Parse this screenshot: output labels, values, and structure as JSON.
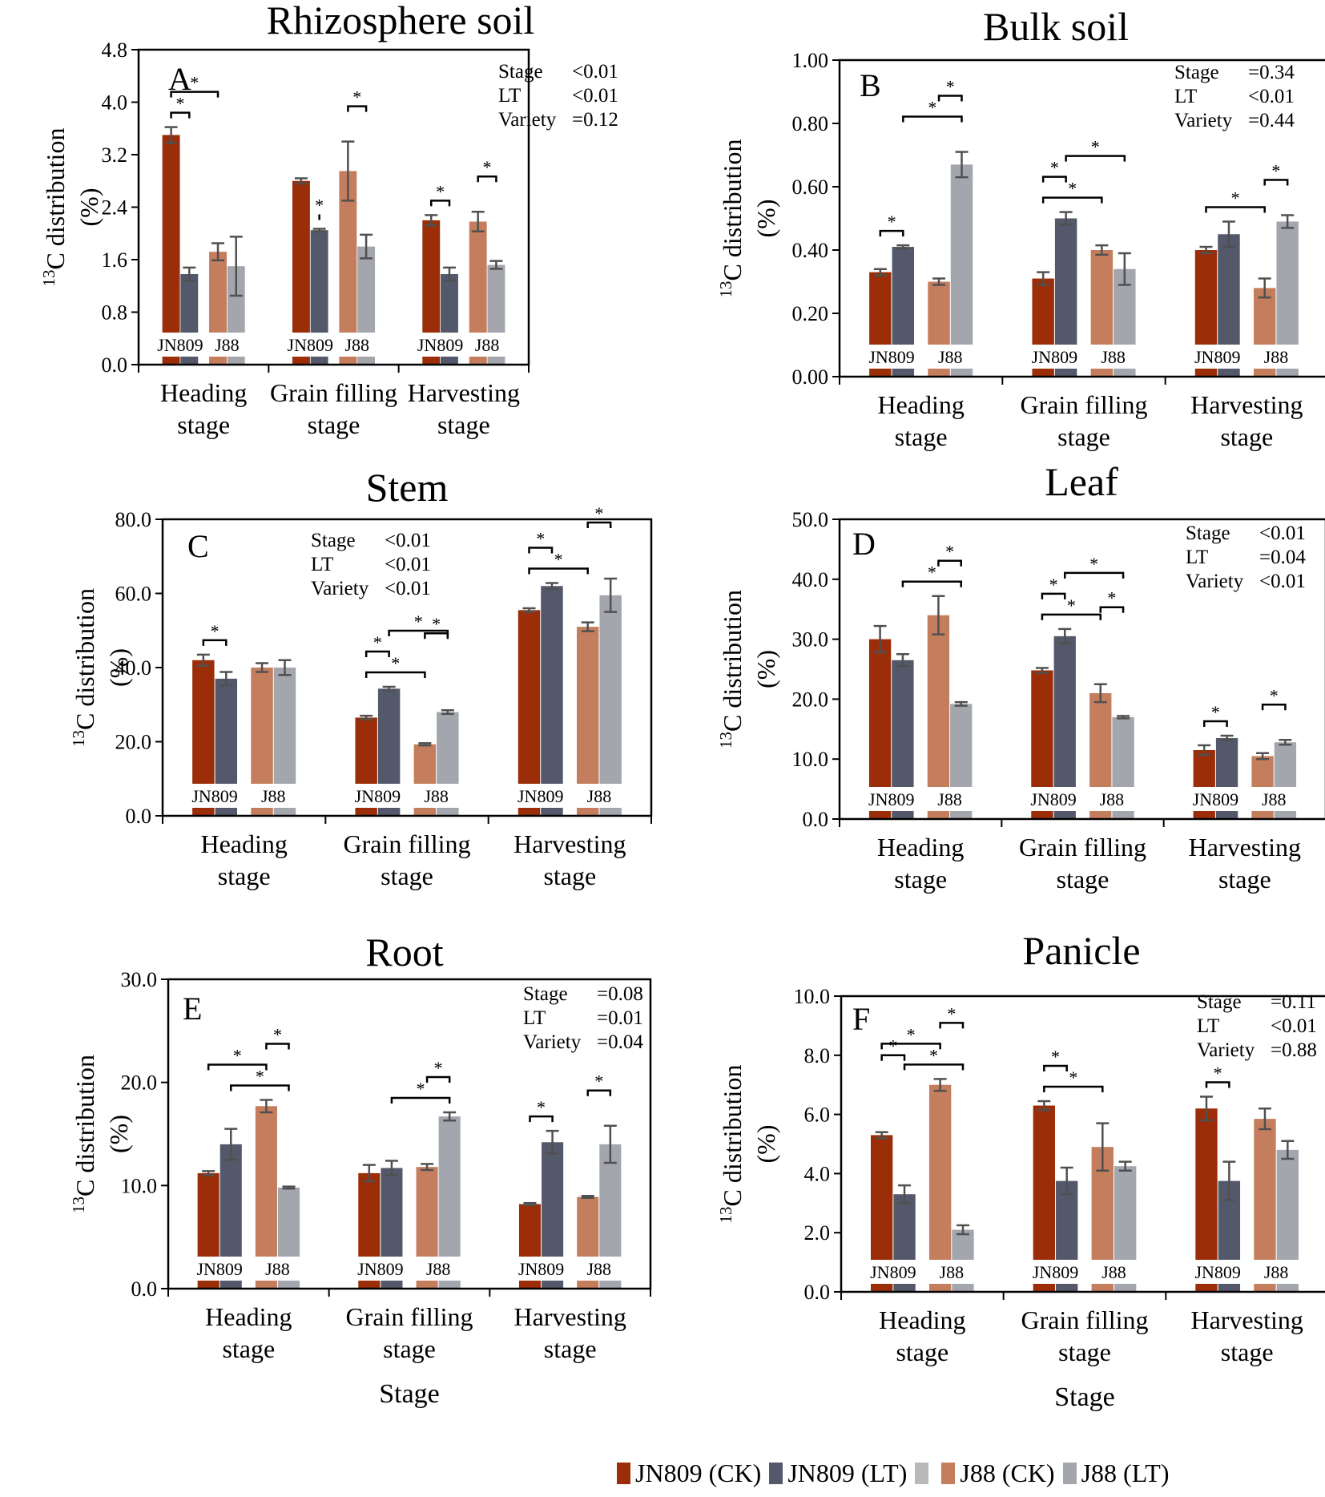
{
  "colors": {
    "jn809_ck": "#9b2e08",
    "jn809_lt": "#53586a",
    "j88_ck": "#c57e5d",
    "j88_lt": "#a4a6ad",
    "error_bar": "#505050",
    "legend_extra": "#b9b9b9"
  },
  "legend": {
    "items": [
      {
        "label": "JN809 (CK)",
        "color": "#9b2e08"
      },
      {
        "label": "JN809 (LT)",
        "color": "#53586a"
      },
      {
        "label": "",
        "color": "#b9b9b9"
      },
      {
        "label": "J88 (CK)",
        "color": "#c57e5d"
      },
      {
        "label": "J88 (LT)",
        "color": "#a4a6ad"
      }
    ]
  },
  "chart_data": [
    {
      "id": "rhizosphere",
      "type": "bar",
      "letter": "A",
      "title": "Rhizosphere soil",
      "ylabel_sup": "13",
      "ylabel_main": "C distribution",
      "ylabel_unit": "(%)",
      "xlabel": "",
      "ylim": [
        0,
        4.8
      ],
      "yticks": [
        "0.0",
        "0.8",
        "1.6",
        "2.4",
        "3.2",
        "4.0",
        "4.8"
      ],
      "categories": [
        [
          "Heading",
          "stage"
        ],
        [
          "Grain filling",
          "stage"
        ],
        [
          "Harvesting",
          "stage"
        ]
      ],
      "variety_labels": [
        "JN809",
        "J88"
      ],
      "series": [
        {
          "name": "JN809 (CK)",
          "values": [
            3.5,
            2.8,
            2.2
          ],
          "errors": [
            0.12,
            0.04,
            0.08
          ]
        },
        {
          "name": "JN809 (LT)",
          "values": [
            1.38,
            2.05,
            1.38
          ],
          "errors": [
            0.1,
            0.02,
            0.1
          ]
        },
        {
          "name": "J88 (CK)",
          "values": [
            1.72,
            2.95,
            2.18
          ],
          "errors": [
            0.13,
            0.45,
            0.15
          ]
        },
        {
          "name": "J88 (LT)",
          "values": [
            1.5,
            1.8,
            1.52
          ],
          "errors": [
            0.45,
            0.18,
            0.06
          ]
        }
      ],
      "stats": [
        [
          "Stage",
          "<0.01"
        ],
        [
          "LT",
          "<0.01"
        ],
        [
          "Variety",
          "=0.12"
        ]
      ],
      "significance": [
        [
          0,
          0,
          0,
          1
        ],
        [
          0,
          0,
          0,
          2
        ],
        [
          1,
          0,
          1,
          1
        ],
        [
          1,
          2,
          2,
          3
        ],
        [
          2,
          0,
          0,
          1
        ],
        [
          2,
          2,
          2,
          3
        ]
      ]
    },
    {
      "id": "bulk",
      "type": "bar",
      "letter": "B",
      "title": "Bulk soil",
      "ylabel_sup": "13",
      "ylabel_main": "C distribution",
      "ylabel_unit": "(%)",
      "xlabel": "",
      "ylim": [
        0,
        1.0
      ],
      "yticks": [
        "0.00",
        "0.20",
        "0.40",
        "0.60",
        "0.80",
        "1.00"
      ],
      "categories": [
        [
          "Heading",
          "stage"
        ],
        [
          "Grain filling",
          "stage"
        ],
        [
          "Harvesting",
          "stage"
        ]
      ],
      "variety_labels": [
        "JN809",
        "J88"
      ],
      "series": [
        {
          "name": "JN809 (CK)",
          "values": [
            0.33,
            0.31,
            0.4
          ],
          "errors": [
            0.01,
            0.02,
            0.01
          ]
        },
        {
          "name": "JN809 (LT)",
          "values": [
            0.41,
            0.5,
            0.45
          ],
          "errors": [
            0.005,
            0.02,
            0.04
          ]
        },
        {
          "name": "J88 (CK)",
          "values": [
            0.3,
            0.4,
            0.28
          ],
          "errors": [
            0.01,
            0.015,
            0.03
          ]
        },
        {
          "name": "J88 (LT)",
          "values": [
            0.67,
            0.34,
            0.49
          ],
          "errors": [
            0.04,
            0.05,
            0.02
          ]
        }
      ],
      "stats": [
        [
          "Stage",
          "=0.34"
        ],
        [
          "LT",
          "<0.01"
        ],
        [
          "Variety",
          "=0.44"
        ]
      ],
      "significance": [
        [
          0,
          0,
          0,
          1
        ],
        [
          0,
          1,
          1,
          3
        ],
        [
          0,
          2,
          2,
          3
        ],
        [
          1,
          0,
          0,
          2
        ],
        [
          1,
          0,
          0,
          1
        ],
        [
          1,
          1,
          1,
          3
        ],
        [
          2,
          0,
          0,
          2
        ],
        [
          2,
          2,
          2,
          3
        ]
      ]
    },
    {
      "id": "stem",
      "type": "bar",
      "letter": "C",
      "title": "Stem",
      "ylabel_sup": "13",
      "ylabel_main": "C distribution",
      "ylabel_unit": "(%)",
      "xlabel": "",
      "ylim": [
        0,
        80
      ],
      "yticks": [
        "0.0",
        "20.0",
        "40.0",
        "60.0",
        "80.0"
      ],
      "categories": [
        [
          "Heading",
          "stage"
        ],
        [
          "Grain filling",
          "stage"
        ],
        [
          "Harvesting",
          "stage"
        ]
      ],
      "variety_labels": [
        "JN809",
        "J88"
      ],
      "series": [
        {
          "name": "JN809 (CK)",
          "values": [
            42,
            26.5,
            55.5
          ],
          "errors": [
            1.5,
            0.5,
            0.5
          ]
        },
        {
          "name": "JN809 (LT)",
          "values": [
            37,
            34.3,
            62
          ],
          "errors": [
            1.8,
            0.5,
            0.8
          ]
        },
        {
          "name": "J88 (CK)",
          "values": [
            40,
            19.3,
            51
          ],
          "errors": [
            1.2,
            0.3,
            1.2
          ]
        },
        {
          "name": "J88 (LT)",
          "values": [
            40,
            28,
            59.5
          ],
          "errors": [
            2,
            0.5,
            4.5
          ]
        }
      ],
      "stats": [
        [
          "Stage",
          "<0.01"
        ],
        [
          "LT",
          "<0.01"
        ],
        [
          "Variety",
          "<0.01"
        ]
      ],
      "significance": [
        [
          0,
          0,
          0,
          1
        ],
        [
          1,
          0,
          0,
          2
        ],
        [
          1,
          0,
          0,
          1
        ],
        [
          1,
          1,
          1,
          3
        ],
        [
          1,
          2,
          2,
          3
        ],
        [
          2,
          0,
          0,
          2
        ],
        [
          2,
          0,
          0,
          1
        ],
        [
          2,
          2,
          2,
          3
        ]
      ]
    },
    {
      "id": "leaf",
      "type": "bar",
      "letter": "D",
      "title": "Leaf",
      "ylabel_sup": "13",
      "ylabel_main": "C distribution",
      "ylabel_unit": "(%)",
      "xlabel": "",
      "ylim": [
        0,
        50
      ],
      "yticks": [
        "0.0",
        "10.0",
        "20.0",
        "30.0",
        "40.0",
        "50.0"
      ],
      "categories": [
        [
          "Heading",
          "stage"
        ],
        [
          "Grain filling",
          "stage"
        ],
        [
          "Harvesting",
          "stage"
        ]
      ],
      "variety_labels": [
        "JN809",
        "J88"
      ],
      "series": [
        {
          "name": "JN809 (CK)",
          "values": [
            30,
            24.8,
            11.5
          ],
          "errors": [
            2.2,
            0.4,
            0.8
          ]
        },
        {
          "name": "JN809 (LT)",
          "values": [
            26.5,
            30.5,
            13.5
          ],
          "errors": [
            1,
            1.2,
            0.4
          ]
        },
        {
          "name": "J88 (CK)",
          "values": [
            34,
            21,
            10.5
          ],
          "errors": [
            3.2,
            1.5,
            0.5
          ]
        },
        {
          "name": "J88 (LT)",
          "values": [
            19.2,
            17,
            12.8
          ],
          "errors": [
            0.3,
            0.2,
            0.4
          ]
        }
      ],
      "stats": [
        [
          "Stage",
          "<0.01"
        ],
        [
          "LT",
          "=0.04"
        ],
        [
          "Variety",
          "<0.01"
        ]
      ],
      "significance": [
        [
          0,
          1,
          1,
          3
        ],
        [
          0,
          2,
          2,
          3
        ],
        [
          1,
          0,
          0,
          2
        ],
        [
          1,
          0,
          0,
          1
        ],
        [
          1,
          1,
          1,
          3
        ],
        [
          1,
          2,
          2,
          3
        ],
        [
          2,
          0,
          0,
          1
        ],
        [
          2,
          2,
          2,
          3
        ]
      ]
    },
    {
      "id": "root",
      "type": "bar",
      "letter": "E",
      "title": "Root",
      "ylabel_sup": "13",
      "ylabel_main": "C distribution",
      "ylabel_unit": "(%)",
      "xlabel": "Stage",
      "ylim": [
        0,
        30
      ],
      "yticks": [
        "0.0",
        "10.0",
        "20.0",
        "30.0"
      ],
      "categories": [
        [
          "Heading",
          "stage"
        ],
        [
          "Grain filling",
          "stage"
        ],
        [
          "Harvesting",
          "stage"
        ]
      ],
      "variety_labels": [
        "JN809",
        "J88"
      ],
      "series": [
        {
          "name": "JN809 (CK)",
          "values": [
            11.2,
            11.2,
            8.2
          ],
          "errors": [
            0.2,
            0.8,
            0.1
          ]
        },
        {
          "name": "JN809 (LT)",
          "values": [
            14,
            11.7,
            14.2
          ],
          "errors": [
            1.5,
            0.7,
            1.1
          ]
        },
        {
          "name": "J88 (CK)",
          "values": [
            17.7,
            11.8,
            8.9
          ],
          "errors": [
            0.6,
            0.3,
            0.1
          ]
        },
        {
          "name": "J88 (LT)",
          "values": [
            9.8,
            16.7,
            14
          ],
          "errors": [
            0.1,
            0.4,
            1.8
          ]
        }
      ],
      "stats": [
        [
          "Stage",
          "=0.08"
        ],
        [
          "LT",
          "=0.01"
        ],
        [
          "Variety",
          "=0.04"
        ]
      ],
      "significance": [
        [
          0,
          1,
          1,
          3
        ],
        [
          0,
          0,
          0,
          2
        ],
        [
          0,
          2,
          2,
          3
        ],
        [
          1,
          1,
          1,
          3
        ],
        [
          1,
          2,
          2,
          3
        ],
        [
          2,
          0,
          0,
          1
        ],
        [
          2,
          2,
          2,
          3
        ]
      ]
    },
    {
      "id": "panicle",
      "type": "bar",
      "letter": "F",
      "title": "Panicle",
      "ylabel_sup": "13",
      "ylabel_main": "C distribution",
      "ylabel_unit": "(%)",
      "xlabel": "Stage",
      "ylim": [
        0,
        10
      ],
      "yticks": [
        "0.0",
        "2.0",
        "4.0",
        "6.0",
        "8.0",
        "10.0"
      ],
      "categories": [
        [
          "Heading",
          "stage"
        ],
        [
          "Grain filling",
          "stage"
        ],
        [
          "Harvesting",
          "stage"
        ]
      ],
      "variety_labels": [
        "JN809",
        "J88"
      ],
      "series": [
        {
          "name": "JN809 (CK)",
          "values": [
            5.3,
            6.3,
            6.2
          ],
          "errors": [
            0.1,
            0.15,
            0.4
          ]
        },
        {
          "name": "JN809 (LT)",
          "values": [
            3.3,
            3.75,
            3.75
          ],
          "errors": [
            0.3,
            0.45,
            0.65
          ]
        },
        {
          "name": "J88 (CK)",
          "values": [
            7,
            4.9,
            5.85
          ],
          "errors": [
            0.2,
            0.8,
            0.35
          ]
        },
        {
          "name": "J88 (LT)",
          "values": [
            2.1,
            4.25,
            4.8
          ],
          "errors": [
            0.15,
            0.15,
            0.3
          ]
        }
      ],
      "stats": [
        [
          "Stage",
          "=0.11"
        ],
        [
          "LT",
          "<0.01"
        ],
        [
          "Variety",
          "=0.88"
        ]
      ],
      "significance": [
        [
          0,
          1,
          1,
          3
        ],
        [
          0,
          0,
          0,
          2
        ],
        [
          0,
          2,
          2,
          3
        ],
        [
          0,
          0,
          0,
          1
        ],
        [
          1,
          0,
          0,
          2
        ],
        [
          1,
          0,
          0,
          1
        ],
        [
          2,
          0,
          0,
          1
        ]
      ]
    }
  ]
}
